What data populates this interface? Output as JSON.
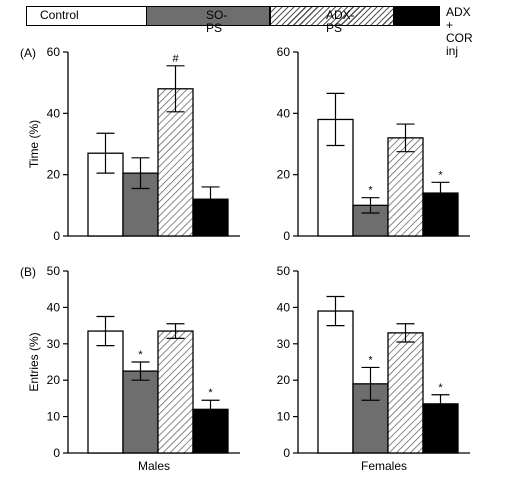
{
  "legend": {
    "items": [
      {
        "label": "Control",
        "style": "white"
      },
      {
        "label": "SO-PS",
        "style": "gray"
      },
      {
        "label": "ADX-PS",
        "style": "hatched"
      },
      {
        "label": "ADX\n+ COR inj",
        "style": "black"
      }
    ]
  },
  "colors": {
    "control": "#ffffff",
    "so_ps": "#6e6e6e",
    "adx_ps_hatch": "#555555",
    "adx_cor": "#000000",
    "axis": "#000000"
  },
  "chart_data": [
    {
      "type": "bar",
      "panel_label": "(A)",
      "ylabel": "Time (%)",
      "xlabel": "",
      "ylim": [
        0,
        60
      ],
      "yticks": [
        0,
        20,
        40,
        60
      ],
      "categories": [
        "Control",
        "SO-PS",
        "ADX-PS",
        "ADX + COR inj"
      ],
      "values": [
        27,
        20.5,
        48,
        12
      ],
      "errors": [
        6.5,
        5,
        7.5,
        4
      ],
      "annotations": [
        "",
        "",
        "#",
        ""
      ]
    },
    {
      "type": "bar",
      "panel_label": "",
      "ylabel": "",
      "xlabel": "",
      "ylim": [
        0,
        60
      ],
      "yticks": [
        0,
        20,
        40,
        60
      ],
      "categories": [
        "Control",
        "SO-PS",
        "ADX-PS",
        "ADX + COR inj"
      ],
      "values": [
        38,
        10,
        32,
        14
      ],
      "errors": [
        8.5,
        2.5,
        4.5,
        3.5
      ],
      "annotations": [
        "",
        "*",
        "",
        "*"
      ]
    },
    {
      "type": "bar",
      "panel_label": "(B)",
      "ylabel": "Entries (%)",
      "xlabel": "Males",
      "ylim": [
        0,
        50
      ],
      "yticks": [
        0,
        10,
        20,
        30,
        40,
        50
      ],
      "categories": [
        "Control",
        "SO-PS",
        "ADX-PS",
        "ADX + COR inj"
      ],
      "values": [
        33.5,
        22.5,
        33.5,
        12
      ],
      "errors": [
        4,
        2.5,
        2,
        2.5
      ],
      "annotations": [
        "",
        "*",
        "",
        "*"
      ]
    },
    {
      "type": "bar",
      "panel_label": "",
      "ylabel": "",
      "xlabel": "Females",
      "ylim": [
        0,
        50
      ],
      "yticks": [
        0,
        10,
        20,
        30,
        40,
        50
      ],
      "categories": [
        "Control",
        "SO-PS",
        "ADX-PS",
        "ADX + COR inj"
      ],
      "values": [
        39,
        19,
        33,
        13.5
      ],
      "errors": [
        4,
        4.5,
        2.5,
        2.5
      ],
      "annotations": [
        "",
        "*",
        "",
        "*"
      ]
    }
  ]
}
